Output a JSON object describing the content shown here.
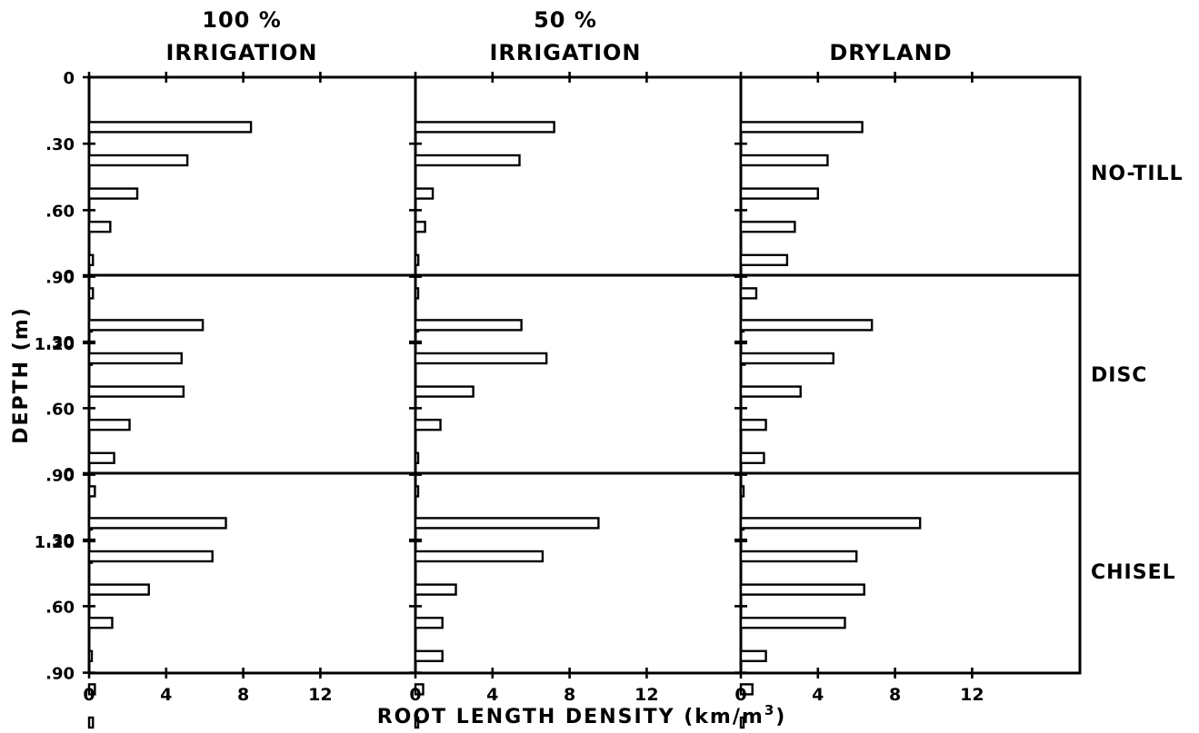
{
  "chart_data": {
    "type": "bar",
    "orientation": "horizontal",
    "xlabel": "ROOT LENGTH DENSITY (km/m",
    "xlabel_sup": "3",
    "xlabel_close": ")",
    "ylabel": "DEPTH (m)",
    "columns": [
      {
        "line1": "100 %",
        "line2": "IRRIGATION"
      },
      {
        "line1": "50 %",
        "line2": "IRRIGATION"
      },
      {
        "line1": "",
        "line2": "DRYLAND"
      }
    ],
    "rows": [
      "NO-TILL",
      "DISC",
      "CHISEL"
    ],
    "x_ticks": [
      "0",
      "4",
      "8",
      "12"
    ],
    "xlim": [
      0,
      16
    ],
    "y_ticks": [
      "0",
      ".30",
      ".60",
      ".90",
      "1.20"
    ],
    "ylim": [
      0,
      1.5
    ],
    "depth_intervals_top": [
      0.0,
      0.15,
      0.3,
      0.45,
      0.6,
      0.75,
      0.9,
      1.05,
      1.2,
      1.35
    ],
    "panels": [
      {
        "row": "NO-TILL",
        "column": "100 % IRRIGATION",
        "values": [
          0,
          8.4,
          5.1,
          2.5,
          1.1,
          0.2,
          0.2,
          0.05,
          0.05,
          0
        ]
      },
      {
        "row": "NO-TILL",
        "column": "50 % IRRIGATION",
        "values": [
          0,
          7.2,
          5.4,
          0.9,
          0.5,
          0.15,
          0.05,
          0.05,
          0,
          0
        ]
      },
      {
        "row": "NO-TILL",
        "column": "DRYLAND",
        "values": [
          0,
          6.3,
          4.5,
          4.0,
          2.8,
          2.4,
          0.8,
          0.1,
          0.2,
          0
        ]
      },
      {
        "row": "DISC",
        "column": "100 % IRRIGATION",
        "values": [
          0,
          5.9,
          4.8,
          4.9,
          2.1,
          1.3,
          0.3,
          0.05,
          0.05,
          0
        ]
      },
      {
        "row": "DISC",
        "column": "50 % IRRIGATION",
        "values": [
          0,
          5.5,
          6.8,
          3.0,
          1.3,
          0.05,
          0.05,
          0,
          0,
          0
        ]
      },
      {
        "row": "DISC",
        "column": "DRYLAND",
        "values": [
          0,
          6.8,
          4.8,
          3.1,
          1.3,
          1.2,
          0.05,
          0.05,
          0,
          0
        ]
      },
      {
        "row": "CHISEL",
        "column": "100 % IRRIGATION",
        "values": [
          0,
          7.1,
          6.4,
          3.1,
          1.2,
          0.05,
          0.3,
          0.2,
          0,
          0
        ]
      },
      {
        "row": "CHISEL",
        "column": "50 % IRRIGATION",
        "values": [
          0,
          9.5,
          6.6,
          2.1,
          1.4,
          1.4,
          0.4,
          0.05,
          0,
          0
        ]
      },
      {
        "row": "CHISEL",
        "column": "DRYLAND",
        "values": [
          0,
          9.3,
          6.0,
          6.4,
          5.4,
          1.3,
          0.6,
          0.05,
          0,
          0
        ]
      }
    ],
    "grid": false,
    "legend": "none"
  }
}
